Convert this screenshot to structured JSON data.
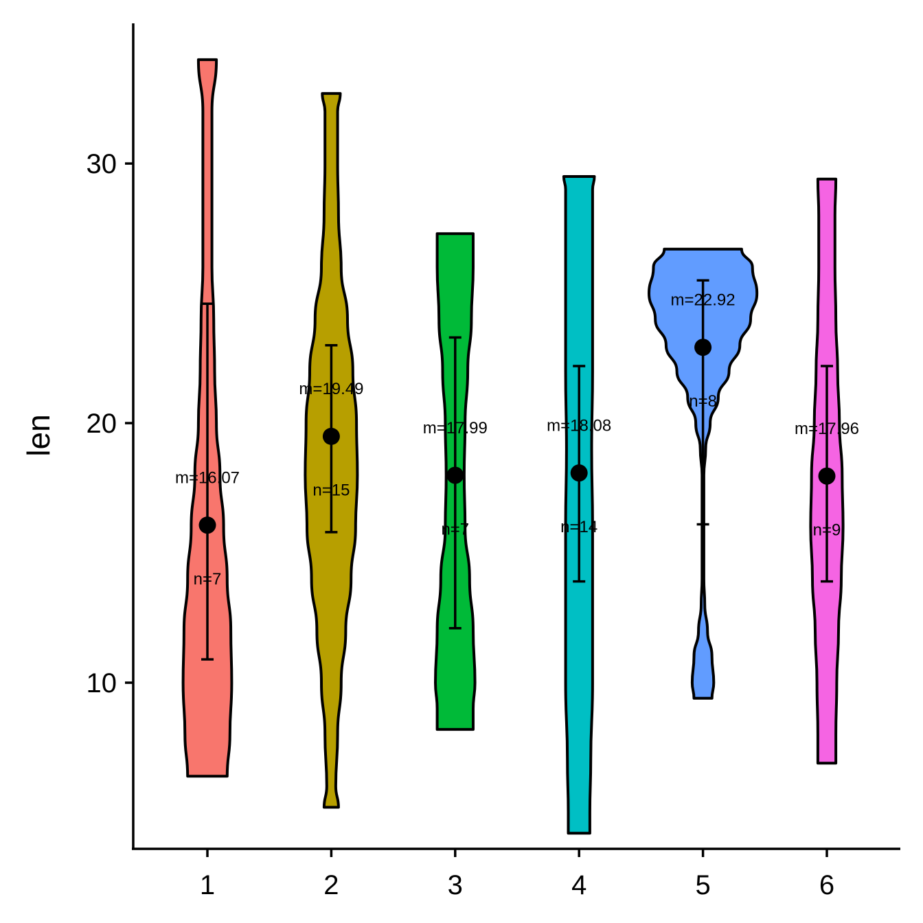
{
  "chart_data": {
    "type": "violin",
    "xlabel": "",
    "ylabel": "len",
    "categories": [
      "1",
      "2",
      "3",
      "4",
      "5",
      "6"
    ],
    "yticks": [
      10,
      20,
      30
    ],
    "ylim": [
      3.6,
      35.4
    ],
    "grid": false,
    "legend": "none",
    "groups": [
      {
        "category": "1",
        "color": "#F8766D",
        "min": 6.4,
        "max": 34.0,
        "mean": 16.07,
        "lower": 10.9,
        "upper": 24.6,
        "mean_label": "m=16.07",
        "n_label": "n=7",
        "profile": [
          [
            6.4,
            0.22
          ],
          [
            8.0,
            0.25
          ],
          [
            10.0,
            0.27
          ],
          [
            12.0,
            0.26
          ],
          [
            14.0,
            0.22
          ],
          [
            16.0,
            0.18
          ],
          [
            18.0,
            0.14
          ],
          [
            20.0,
            0.1
          ],
          [
            22.0,
            0.08
          ],
          [
            24.0,
            0.07
          ],
          [
            26.0,
            0.05
          ],
          [
            28.0,
            0.05
          ],
          [
            30.0,
            0.05
          ],
          [
            32.0,
            0.05
          ],
          [
            34.0,
            0.1
          ]
        ]
      },
      {
        "category": "2",
        "color": "#B79F00",
        "min": 5.2,
        "max": 32.7,
        "mean": 19.49,
        "lower": 15.8,
        "upper": 23.0,
        "mean_label": "m=19.49",
        "n_label": "n=15",
        "profile": [
          [
            5.2,
            0.08
          ],
          [
            6.0,
            0.05
          ],
          [
            8.0,
            0.07
          ],
          [
            10.0,
            0.11
          ],
          [
            12.0,
            0.16
          ],
          [
            14.0,
            0.22
          ],
          [
            16.0,
            0.27
          ],
          [
            18.0,
            0.29
          ],
          [
            20.0,
            0.28
          ],
          [
            22.0,
            0.24
          ],
          [
            24.0,
            0.18
          ],
          [
            26.0,
            0.11
          ],
          [
            28.0,
            0.08
          ],
          [
            30.0,
            0.07
          ],
          [
            32.0,
            0.07
          ],
          [
            32.7,
            0.1
          ]
        ]
      },
      {
        "category": "3",
        "color": "#00BA38",
        "min": 8.2,
        "max": 27.3,
        "mean": 17.99,
        "lower": 12.1,
        "upper": 23.3,
        "mean_label": "m=17.99",
        "n_label": "n=7",
        "profile": [
          [
            8.2,
            0.2
          ],
          [
            9.0,
            0.2
          ],
          [
            10.0,
            0.22
          ],
          [
            12.0,
            0.2
          ],
          [
            14.0,
            0.16
          ],
          [
            16.0,
            0.11
          ],
          [
            18.0,
            0.1
          ],
          [
            20.0,
            0.11
          ],
          [
            22.0,
            0.14
          ],
          [
            24.0,
            0.18
          ],
          [
            26.0,
            0.2
          ],
          [
            27.3,
            0.2
          ]
        ]
      },
      {
        "category": "4",
        "color": "#00BFC4",
        "min": 4.2,
        "max": 29.5,
        "mean": 18.08,
        "lower": 13.9,
        "upper": 22.2,
        "mean_label": "m=18.08",
        "n_label": "n=14",
        "profile": [
          [
            4.2,
            0.12
          ],
          [
            5.0,
            0.12
          ],
          [
            7.0,
            0.13
          ],
          [
            10.0,
            0.15
          ],
          [
            13.0,
            0.15
          ],
          [
            16.0,
            0.15
          ],
          [
            19.0,
            0.14
          ],
          [
            22.0,
            0.15
          ],
          [
            25.0,
            0.15
          ],
          [
            27.0,
            0.15
          ],
          [
            29.0,
            0.15
          ],
          [
            29.5,
            0.17
          ]
        ]
      },
      {
        "category": "5",
        "color": "#619CFF",
        "min": 9.4,
        "max": 26.7,
        "mean": 22.92,
        "lower": 16.1,
        "upper": 25.5,
        "mean_label": "m=22.92",
        "n_label": "n=8",
        "profile": [
          [
            9.4,
            0.1
          ],
          [
            10.0,
            0.12
          ],
          [
            11.0,
            0.1
          ],
          [
            12.0,
            0.05
          ],
          [
            13.0,
            0.02
          ],
          [
            14.0,
            0.01
          ],
          [
            16.0,
            0.01
          ],
          [
            18.0,
            0.01
          ],
          [
            19.0,
            0.03
          ],
          [
            20.0,
            0.08
          ],
          [
            21.0,
            0.17
          ],
          [
            22.0,
            0.29
          ],
          [
            23.0,
            0.41
          ],
          [
            24.0,
            0.53
          ],
          [
            25.0,
            0.6
          ],
          [
            26.0,
            0.55
          ],
          [
            26.7,
            0.43
          ]
        ]
      },
      {
        "category": "6",
        "color": "#F564E3",
        "min": 6.9,
        "max": 29.4,
        "mean": 17.96,
        "lower": 13.9,
        "upper": 22.2,
        "mean_label": "m=17.96",
        "n_label": "n=9",
        "profile": [
          [
            6.9,
            0.1
          ],
          [
            8.0,
            0.1
          ],
          [
            10.0,
            0.11
          ],
          [
            12.0,
            0.13
          ],
          [
            14.0,
            0.16
          ],
          [
            16.0,
            0.18
          ],
          [
            18.0,
            0.17
          ],
          [
            20.0,
            0.14
          ],
          [
            22.0,
            0.12
          ],
          [
            24.0,
            0.1
          ],
          [
            26.0,
            0.09
          ],
          [
            28.0,
            0.09
          ],
          [
            29.4,
            0.1
          ]
        ]
      }
    ]
  }
}
